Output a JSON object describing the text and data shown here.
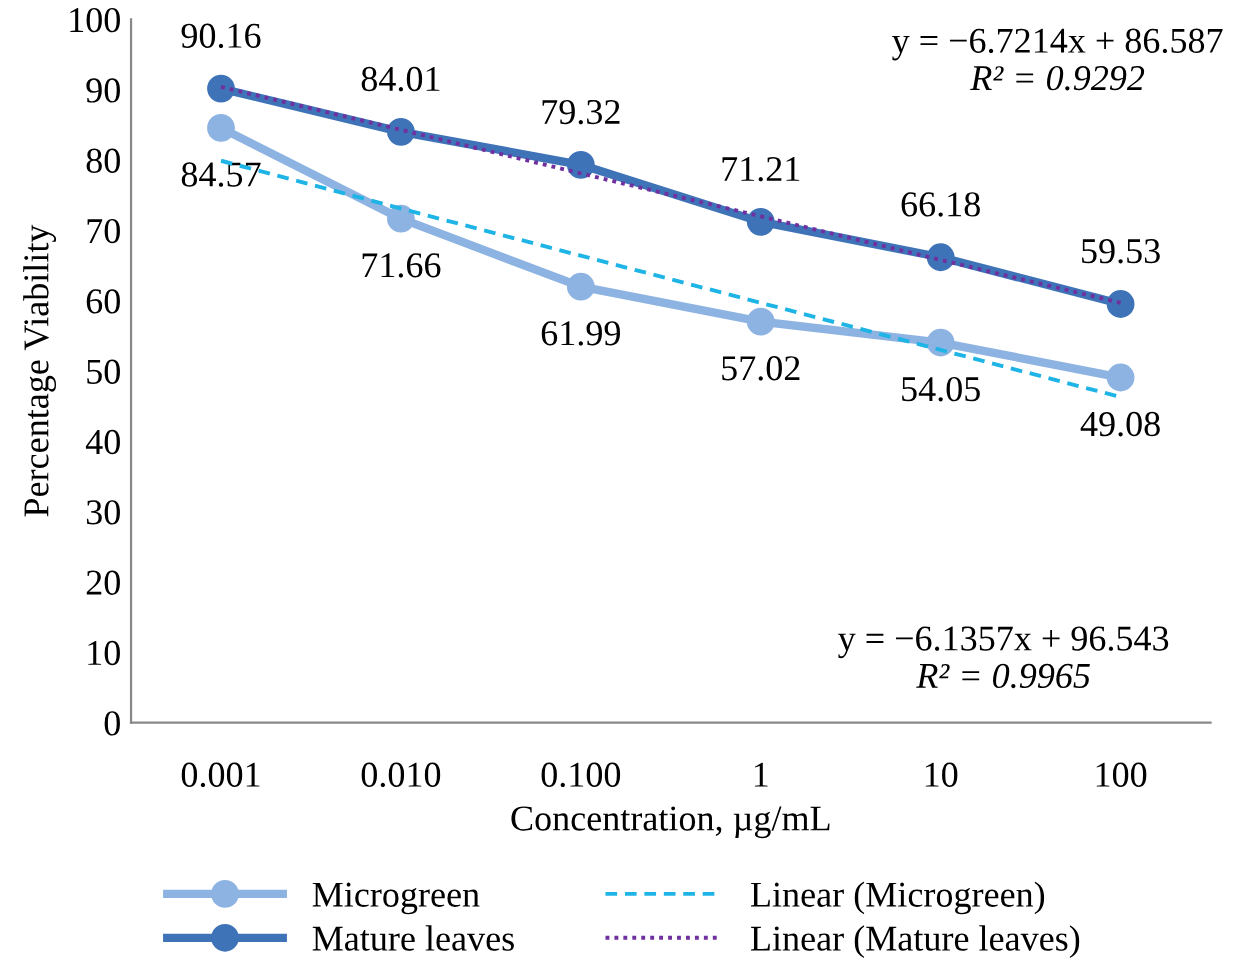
{
  "chart_data": {
    "type": "line",
    "xlabel": "Concentration, µg/mL",
    "ylabel": "Percentage Viability",
    "categories": [
      "0.001",
      "0.010",
      "0.100",
      "1",
      "10",
      "100"
    ],
    "series": [
      {
        "name": "Microgreen",
        "color": "#8db3e2",
        "marker": "circle",
        "line_style": "solid",
        "data_labels": true,
        "values": [
          84.57,
          71.66,
          61.99,
          57.02,
          54.05,
          49.08
        ]
      },
      {
        "name": "Mature leaves",
        "color": "#3f73b8",
        "marker": "circle",
        "line_style": "solid",
        "data_labels": true,
        "values": [
          90.16,
          84.01,
          79.32,
          71.21,
          66.18,
          59.53
        ]
      },
      {
        "name": "Linear (Microgreen)",
        "color": "#1eb4e6",
        "marker": "none",
        "line_style": "dashed",
        "values": [
          79.9,
          73.1,
          66.4,
          59.7,
          53.0,
          46.3
        ]
      },
      {
        "name": "Linear (Mature leaves)",
        "color": "#7030a0",
        "marker": "none",
        "line_style": "dotted",
        "values": [
          90.4,
          84.3,
          78.1,
          72.0,
          65.8,
          59.7
        ]
      }
    ],
    "ylim": [
      0,
      100
    ],
    "yticks": [
      0,
      10,
      20,
      30,
      40,
      50,
      60,
      70,
      80,
      90,
      100
    ],
    "grid": false,
    "legend": "bottom",
    "annotations": [
      "y = −6.7214x + 86.587",
      "R² = 0.9292",
      "y = −6.1357x + 96.543",
      "R² = 0.9965"
    ]
  }
}
